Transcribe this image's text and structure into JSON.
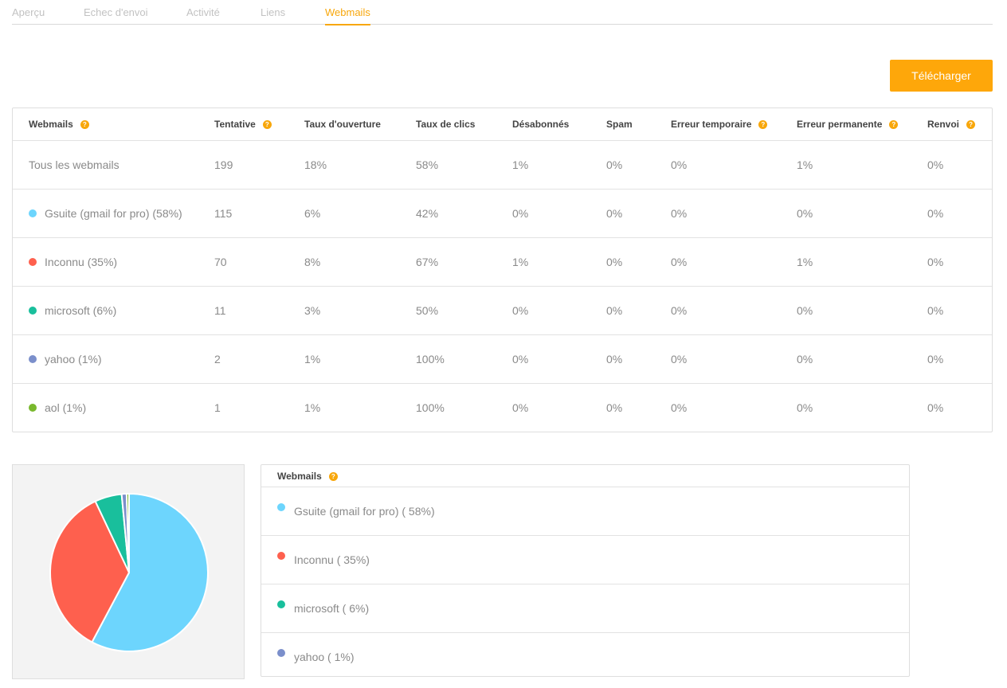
{
  "tabs": [
    {
      "label": "Aperçu",
      "active": false
    },
    {
      "label": "Echec d'envoi",
      "active": false
    },
    {
      "label": "Activité",
      "active": false
    },
    {
      "label": "Liens",
      "active": false
    },
    {
      "label": "Webmails",
      "active": true
    }
  ],
  "download_button": "Télécharger",
  "help_glyph": "?",
  "table": {
    "headers": [
      {
        "label": "Webmails",
        "help": true
      },
      {
        "label": "Tentative",
        "help": true
      },
      {
        "label": "Taux d'ouverture",
        "help": false
      },
      {
        "label": "Taux de clics",
        "help": false
      },
      {
        "label": "Désabonnés",
        "help": false
      },
      {
        "label": "Spam",
        "help": false
      },
      {
        "label": "Erreur temporaire",
        "help": true
      },
      {
        "label": "Erreur permanente",
        "help": true
      },
      {
        "label": "Renvoi",
        "help": true
      }
    ],
    "rows": [
      {
        "name": "Tous les webmails",
        "color": null,
        "cells": [
          "199",
          "18%",
          "58%",
          "1%",
          "0%",
          "0%",
          "1%",
          "0%"
        ]
      },
      {
        "name": "Gsuite (gmail for pro) (58%)",
        "color": "#6dd5fd",
        "cells": [
          "115",
          "6%",
          "42%",
          "0%",
          "0%",
          "0%",
          "0%",
          "0%"
        ]
      },
      {
        "name": "Inconnu (35%)",
        "color": "#fe604e",
        "cells": [
          "70",
          "8%",
          "67%",
          "1%",
          "0%",
          "0%",
          "1%",
          "0%"
        ]
      },
      {
        "name": "microsoft (6%)",
        "color": "#19bf9c",
        "cells": [
          "11",
          "3%",
          "50%",
          "0%",
          "0%",
          "0%",
          "0%",
          "0%"
        ]
      },
      {
        "name": "yahoo (1%)",
        "color": "#7b8fcb",
        "cells": [
          "2",
          "1%",
          "100%",
          "0%",
          "0%",
          "0%",
          "0%",
          "0%"
        ]
      },
      {
        "name": "aol (1%)",
        "color": "#79b82d",
        "cells": [
          "1",
          "1%",
          "100%",
          "0%",
          "0%",
          "0%",
          "0%",
          "0%"
        ]
      }
    ]
  },
  "legend": {
    "title": "Webmails",
    "items": [
      {
        "label": "Gsuite (gmail for pro) ( 58%)",
        "color": "#6dd5fd"
      },
      {
        "label": "Inconnu ( 35%)",
        "color": "#fe604e"
      },
      {
        "label": "microsoft ( 6%)",
        "color": "#19bf9c"
      },
      {
        "label": "yahoo ( 1%)",
        "color": "#7b8fcb"
      }
    ]
  },
  "chart_data": {
    "type": "pie",
    "slices": [
      {
        "label": "Gsuite (gmail for pro)",
        "value": 115,
        "color": "#6dd5fd"
      },
      {
        "label": "Inconnu",
        "value": 70,
        "color": "#fe604e"
      },
      {
        "label": "microsoft",
        "value": 11,
        "color": "#19bf9c"
      },
      {
        "label": "yahoo",
        "value": 2,
        "color": "#7b8fcb"
      },
      {
        "label": "aol",
        "value": 1,
        "color": "#79b82d"
      }
    ]
  }
}
